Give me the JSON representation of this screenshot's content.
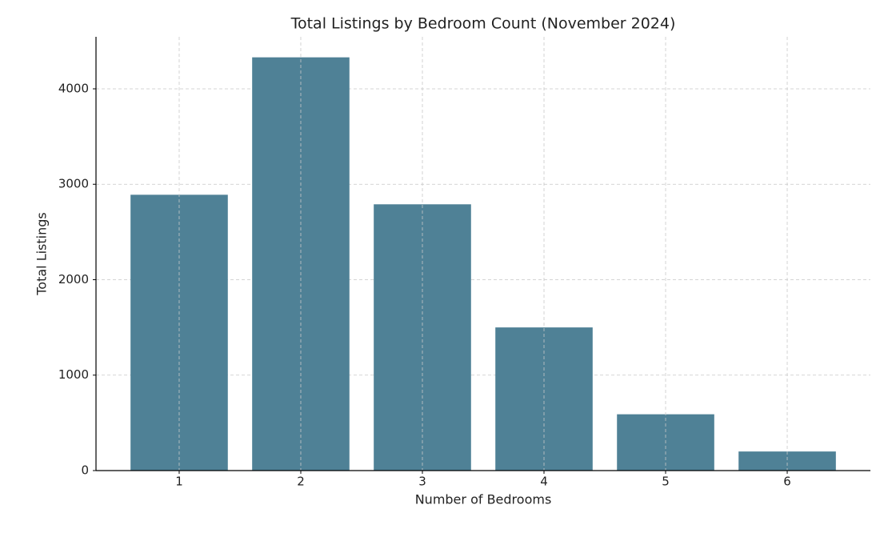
{
  "chart_data": {
    "type": "bar",
    "title": "Total Listings by Bedroom Count (November 2024)",
    "x_label": "Number of Bedrooms",
    "y_label": "Total Listings",
    "categories": [
      "1",
      "2",
      "3",
      "4",
      "5",
      "6"
    ],
    "values": [
      2890,
      4330,
      2790,
      1500,
      590,
      200
    ],
    "color": "#4f8196",
    "ylim": [
      0,
      4545
    ],
    "yticks": [
      0,
      1000,
      2000,
      3000,
      4000
    ],
    "grid": true
  }
}
